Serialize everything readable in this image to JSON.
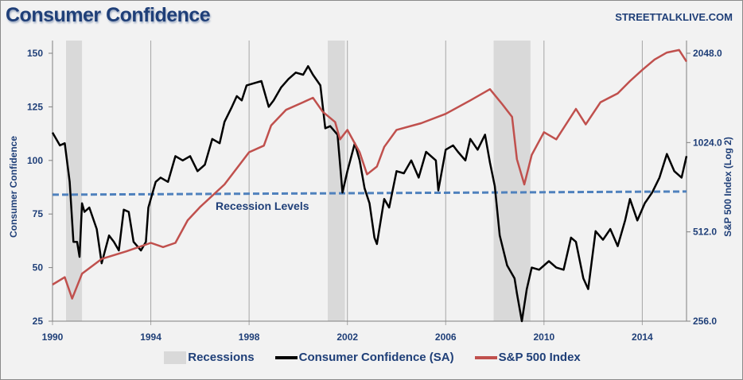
{
  "header": {
    "title": "Consumer Confidence",
    "brand": "STREETTALKLIVE.COM"
  },
  "chart_data": {
    "type": "line",
    "title": "Consumer Confidence",
    "ylabel": "Consumer Confidence",
    "y2label": "S&P 500 Index (Log 2)",
    "xlim": [
      1990,
      2015.8
    ],
    "ylim": [
      25,
      150
    ],
    "y2lim": [
      256,
      2048
    ],
    "y2scale": "log2",
    "xticks": [
      "1990",
      "1994",
      "1998",
      "2002",
      "2006",
      "2010",
      "2014"
    ],
    "yticks": [
      "150",
      "125",
      "100",
      "75",
      "50",
      "25"
    ],
    "y2ticks": [
      "2048.0",
      "1024.0",
      "512.0",
      "256.0"
    ],
    "grid": "vertical",
    "legend_position": "bottom",
    "recessions": [
      [
        1990.55,
        1991.2
      ],
      [
        2001.2,
        2001.9
      ],
      [
        2007.95,
        2009.45
      ]
    ],
    "recession_level": {
      "label": "Recession Levels",
      "values": [
        84,
        85.5
      ],
      "color": "#4f81bd"
    },
    "series": [
      {
        "name": "Consumer Confidence (SA)",
        "axis": "left",
        "color": "#000000",
        "x": [
          1990.0,
          1990.3,
          1990.5,
          1990.7,
          1990.85,
          1991.0,
          1991.1,
          1991.2,
          1991.3,
          1991.5,
          1991.8,
          1992.0,
          1992.3,
          1992.5,
          1992.7,
          1992.9,
          1993.1,
          1993.3,
          1993.6,
          1993.8,
          1993.9,
          1994.2,
          1994.4,
          1994.7,
          1995.0,
          1995.3,
          1995.6,
          1995.9,
          1996.2,
          1996.5,
          1996.8,
          1997.0,
          1997.3,
          1997.5,
          1997.7,
          1997.9,
          1998.2,
          1998.5,
          1998.8,
          1999.0,
          1999.3,
          1999.6,
          1999.9,
          2000.2,
          2000.4,
          2000.6,
          2000.9,
          2001.1,
          2001.3,
          2001.6,
          2001.8,
          2002.0,
          2002.3,
          2002.5,
          2002.7,
          2002.9,
          2003.1,
          2003.2,
          2003.5,
          2003.7,
          2004.0,
          2004.3,
          2004.6,
          2004.9,
          2005.2,
          2005.6,
          2005.7,
          2006.0,
          2006.3,
          2006.5,
          2006.8,
          2007.0,
          2007.3,
          2007.6,
          2007.8,
          2008.0,
          2008.2,
          2008.5,
          2008.8,
          2008.9,
          2009.1,
          2009.3,
          2009.5,
          2009.8,
          2010.2,
          2010.5,
          2010.8,
          2011.1,
          2011.3,
          2011.6,
          2011.8,
          2012.1,
          2012.4,
          2012.7,
          2013.0,
          2013.3,
          2013.5,
          2013.8,
          2014.1,
          2014.4,
          2014.7,
          2015.0,
          2015.3,
          2015.6,
          2015.8
        ],
        "values": [
          113,
          107,
          108,
          90,
          62,
          62,
          55,
          80,
          76,
          78,
          68,
          52,
          65,
          62,
          58,
          77,
          76,
          62,
          58,
          62,
          78,
          90,
          92,
          90,
          102,
          100,
          102,
          95,
          98,
          110,
          108,
          118,
          125,
          130,
          128,
          135,
          136,
          137,
          125,
          128,
          134,
          138,
          141,
          140,
          144,
          140,
          135,
          115,
          116,
          112,
          85,
          95,
          108,
          100,
          87,
          80,
          64,
          61,
          82,
          78,
          95,
          94,
          100,
          92,
          104,
          100,
          86,
          105,
          107,
          104,
          100,
          110,
          105,
          112,
          99,
          88,
          65,
          51,
          45,
          38,
          25,
          40,
          50,
          49,
          53,
          50,
          49,
          64,
          62,
          45,
          40,
          67,
          63,
          68,
          60,
          72,
          82,
          72,
          80,
          85,
          92,
          103,
          95,
          92,
          102
        ]
      },
      {
        "name": "S&P 500 Index",
        "axis": "right",
        "color": "#c0504d",
        "x": [
          1990.0,
          1990.5,
          1990.8,
          1991.2,
          1992.0,
          1993.0,
          1994.0,
          1994.5,
          1995.0,
          1995.5,
          1996.0,
          1997.0,
          1998.0,
          1998.6,
          1998.9,
          1999.5,
          2000.2,
          2000.6,
          2001.0,
          2001.5,
          2001.7,
          2002.0,
          2002.5,
          2002.8,
          2003.2,
          2003.5,
          2004.0,
          2005.0,
          2006.0,
          2007.0,
          2007.8,
          2008.3,
          2008.7,
          2008.9,
          2009.2,
          2009.5,
          2010.0,
          2010.5,
          2011.3,
          2011.7,
          2012.3,
          2013.0,
          2013.5,
          2014.0,
          2014.5,
          2015.0,
          2015.5,
          2015.8
        ],
        "values": [
          340,
          360,
          305,
          370,
          415,
          440,
          470,
          455,
          470,
          560,
          620,
          740,
          950,
          1000,
          1170,
          1320,
          1400,
          1450,
          1300,
          1200,
          1050,
          1130,
          950,
          800,
          850,
          990,
          1130,
          1190,
          1280,
          1420,
          1550,
          1380,
          1250,
          900,
          740,
          930,
          1110,
          1050,
          1330,
          1180,
          1400,
          1500,
          1650,
          1800,
          1950,
          2060,
          2100,
          1920
        ]
      }
    ],
    "legend": [
      {
        "label": "Recessions",
        "color": "#d9d9d9"
      },
      {
        "label": "Consumer Confidence (SA)",
        "color": "#000000"
      },
      {
        "label": "S&P 500 Index",
        "color": "#c0504d"
      }
    ]
  }
}
